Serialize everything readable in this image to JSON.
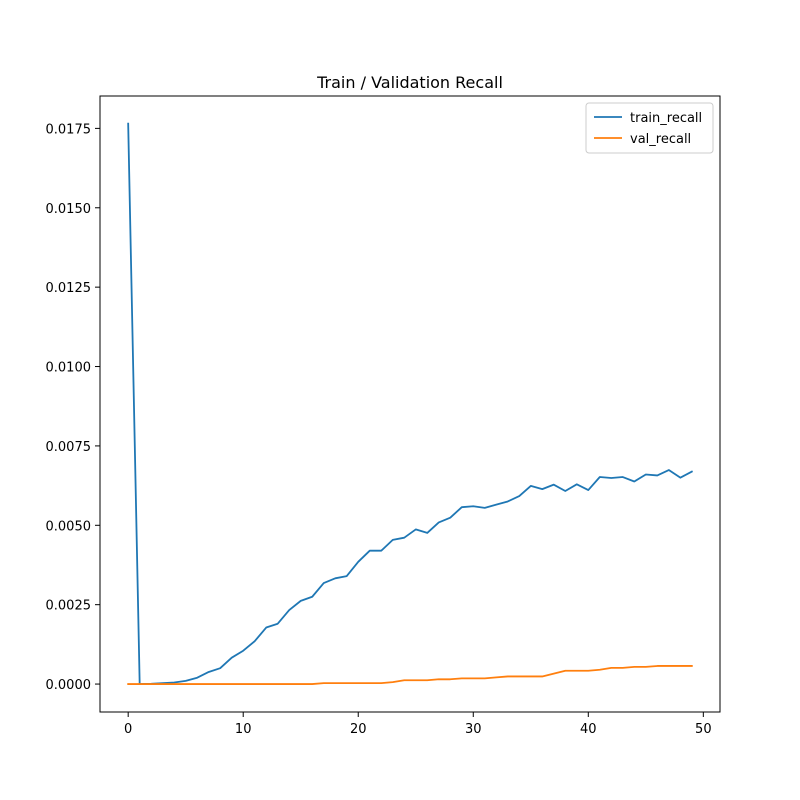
{
  "chart_data": {
    "type": "line",
    "title": "Train / Validation Recall",
    "xlabel": "",
    "ylabel": "",
    "xlim": [
      -2.45,
      51.45
    ],
    "ylim": [
      -0.00088,
      0.01852
    ],
    "xticks": [
      0,
      10,
      20,
      30,
      40,
      50
    ],
    "yticks": [
      0.0,
      0.0025,
      0.005,
      0.0075,
      0.01,
      0.0125,
      0.015,
      0.0175
    ],
    "xtick_labels": [
      "0",
      "10",
      "20",
      "30",
      "40",
      "50"
    ],
    "ytick_labels": [
      "0.0000",
      "0.0025",
      "0.0050",
      "0.0075",
      "0.0100",
      "0.0125",
      "0.0150",
      "0.0175"
    ],
    "grid": false,
    "legend_position": "top-right",
    "x": [
      0,
      1,
      2,
      3,
      4,
      5,
      6,
      7,
      8,
      9,
      10,
      11,
      12,
      13,
      14,
      15,
      16,
      17,
      18,
      19,
      20,
      21,
      22,
      23,
      24,
      25,
      26,
      27,
      28,
      29,
      30,
      31,
      32,
      33,
      34,
      35,
      36,
      37,
      38,
      39,
      40,
      41,
      42,
      43,
      44,
      45,
      46,
      47,
      48,
      49
    ],
    "series": [
      {
        "name": "train_recall",
        "color": "#1f77b4",
        "values": [
          0.01765,
          0.0,
          1e-05,
          3e-05,
          5e-05,
          0.0001,
          0.0002,
          0.00038,
          0.0005,
          0.00083,
          0.00105,
          0.00135,
          0.00178,
          0.0019,
          0.00233,
          0.00262,
          0.00275,
          0.00318,
          0.00333,
          0.0034,
          0.00385,
          0.0042,
          0.0042,
          0.00454,
          0.00461,
          0.00487,
          0.00476,
          0.00509,
          0.00524,
          0.00557,
          0.0056,
          0.00555,
          0.00565,
          0.00575,
          0.00592,
          0.00624,
          0.00614,
          0.00628,
          0.00608,
          0.00629,
          0.00611,
          0.00652,
          0.00649,
          0.00652,
          0.00638,
          0.0066,
          0.00657,
          0.00674,
          0.0065,
          0.00669
        ]
      },
      {
        "name": "val_recall",
        "color": "#ff7f0e",
        "values": [
          0.0,
          0.0,
          0.0,
          0.0,
          0.0,
          0.0,
          0.0,
          0.0,
          0.0,
          0.0,
          0.0,
          0.0,
          0.0,
          0.0,
          0.0,
          0.0,
          0.0,
          3e-05,
          3e-05,
          3e-05,
          3e-05,
          3e-05,
          3e-05,
          6e-05,
          0.00012,
          0.00012,
          0.00012,
          0.00015,
          0.00015,
          0.00018,
          0.00018,
          0.00018,
          0.00021,
          0.00024,
          0.00024,
          0.00024,
          0.00024,
          0.00033,
          0.00042,
          0.00042,
          0.00042,
          0.00045,
          0.00051,
          0.00051,
          0.00054,
          0.00054,
          0.00057,
          0.00057,
          0.00057,
          0.00057
        ]
      }
    ]
  }
}
